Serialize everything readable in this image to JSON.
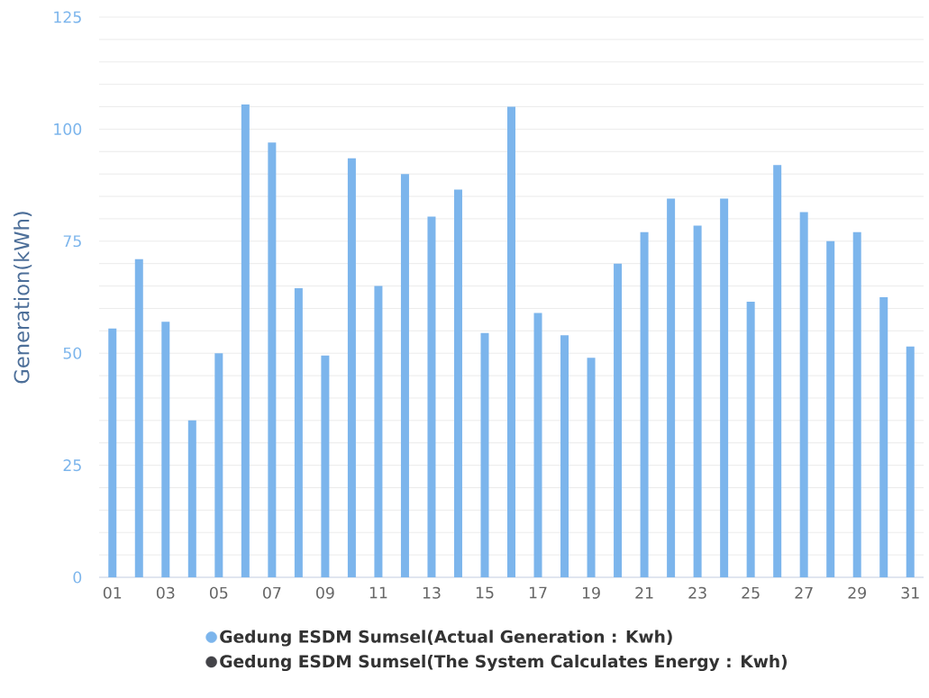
{
  "chart_data": {
    "type": "bar",
    "ylabel": "Generation(kWh)",
    "categories": [
      "01",
      null,
      "03",
      null,
      "05",
      null,
      "07",
      null,
      "09",
      null,
      "11",
      null,
      "13",
      null,
      "15",
      null,
      "17",
      null,
      "19",
      null,
      "21",
      null,
      "23",
      null,
      "25",
      null,
      "27",
      null,
      "29",
      null,
      "31"
    ],
    "series": [
      {
        "name": "Gedung ESDM Sumsel(Actual Generation : Kwh)",
        "color": "#7cb5ec",
        "values": [
          55.5,
          71,
          57,
          35,
          50,
          105.5,
          97,
          64.5,
          49.5,
          93.5,
          65,
          90,
          80.5,
          86.5,
          54.5,
          105,
          59,
          54,
          49,
          70,
          77,
          84.5,
          78.5,
          84.5,
          61.5,
          92,
          81.5,
          75,
          77,
          62.5,
          51.5
        ]
      },
      {
        "name": "Gedung ESDM Sumsel(The System Calculates Energy : Kwh)",
        "color": "#434348",
        "values": [
          null,
          null,
          null,
          null,
          null,
          null,
          null,
          null,
          null,
          null,
          null,
          null,
          null,
          null,
          null,
          null,
          null,
          null,
          null,
          null,
          null,
          null,
          null,
          null,
          null,
          null,
          null,
          null,
          null,
          null,
          null
        ]
      }
    ],
    "ylim": [
      0,
      125
    ],
    "yticks": [
      0,
      {
        "value": 5,
        "label": null
      },
      {
        "value": 10,
        "label": null
      },
      {
        "value": 15,
        "label": null
      },
      {
        "value": 20,
        "label": null
      },
      25,
      {
        "value": 30,
        "label": null
      },
      {
        "value": 35,
        "label": null
      },
      {
        "value": 40,
        "label": null
      },
      {
        "value": 45,
        "label": null
      },
      50,
      {
        "value": 55,
        "label": null
      },
      {
        "value": 60,
        "label": null
      },
      {
        "value": 65,
        "label": null
      },
      {
        "value": 70,
        "label": null
      },
      75,
      {
        "value": 80,
        "label": null
      },
      {
        "value": 85,
        "label": null
      },
      {
        "value": 90,
        "label": null
      },
      {
        "value": 95,
        "label": null
      },
      100,
      {
        "value": 105,
        "label": null
      },
      {
        "value": 110,
        "label": null
      },
      {
        "value": 115,
        "label": null
      },
      {
        "value": 120,
        "label": null
      },
      125
    ],
    "grid": "y",
    "legend": "bottom"
  }
}
